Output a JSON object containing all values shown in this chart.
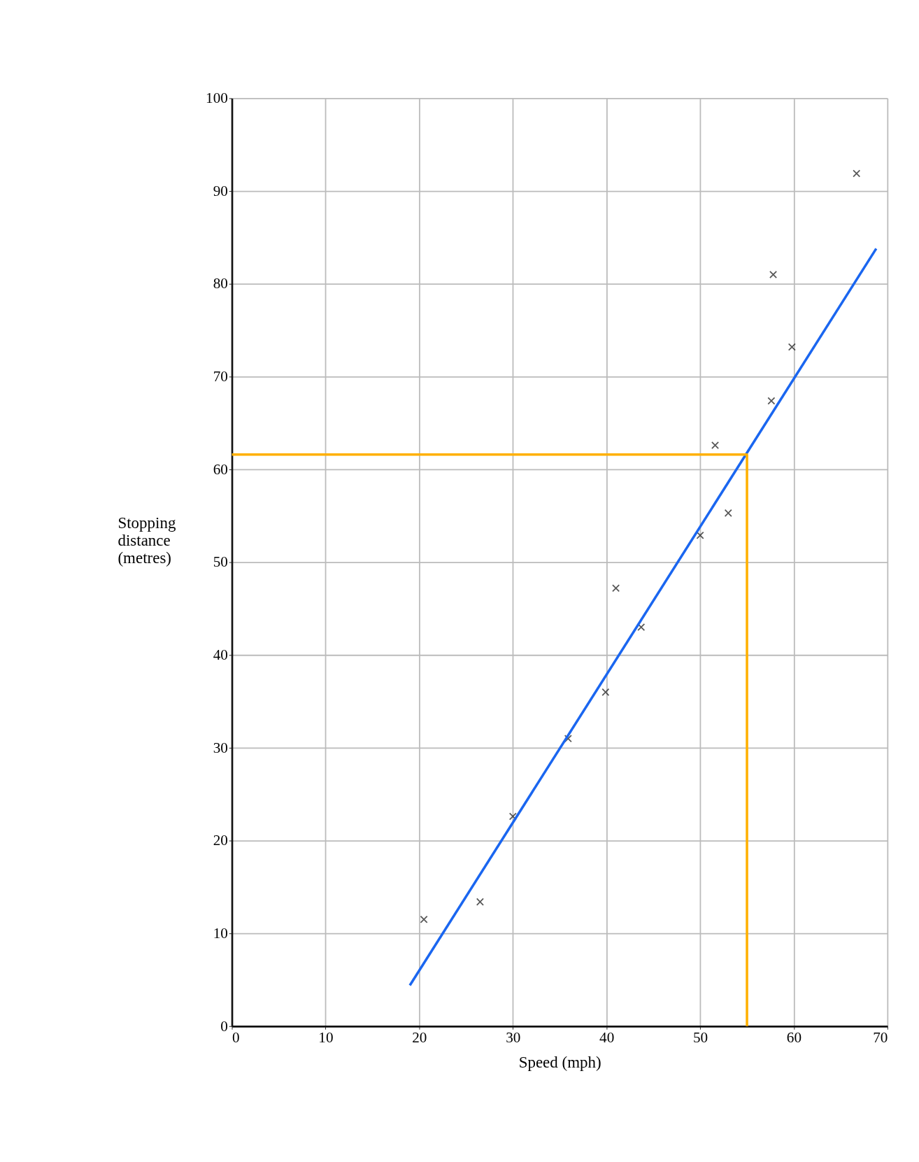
{
  "chart_data": {
    "type": "scatter",
    "xlabel": "Speed (mph)",
    "ylabel": "Stopping\ndistance\n(metres)",
    "xlim": [
      0,
      70
    ],
    "ylim": [
      0,
      100
    ],
    "xticks": [
      0,
      10,
      20,
      30,
      40,
      50,
      60,
      70
    ],
    "yticks": [
      0,
      10,
      20,
      30,
      40,
      50,
      60,
      70,
      80,
      90,
      100
    ],
    "grid": true,
    "legend": false,
    "series": [
      {
        "marker": "cross",
        "color": "#111111",
        "x": [
          20.5,
          26.5,
          30.0,
          35.9,
          39.9,
          41.0,
          43.7,
          50.0,
          53.0,
          51.6,
          57.6,
          57.8,
          59.8,
          66.7
        ],
        "values": [
          11.5,
          13.4,
          22.6,
          31.0,
          36.0,
          47.2,
          43.0,
          52.9,
          55.3,
          62.6,
          67.4,
          81.0,
          73.2,
          91.9
        ]
      },
      {
        "type": "line",
        "color": "#1a66f0",
        "x": [
          19.0,
          68.8
        ],
        "values": [
          4.4,
          83.8
        ]
      },
      {
        "type": "line",
        "color": "#ffb000",
        "x": [
          0,
          55,
          55
        ],
        "values": [
          61.6,
          61.6,
          0
        ]
      }
    ]
  }
}
